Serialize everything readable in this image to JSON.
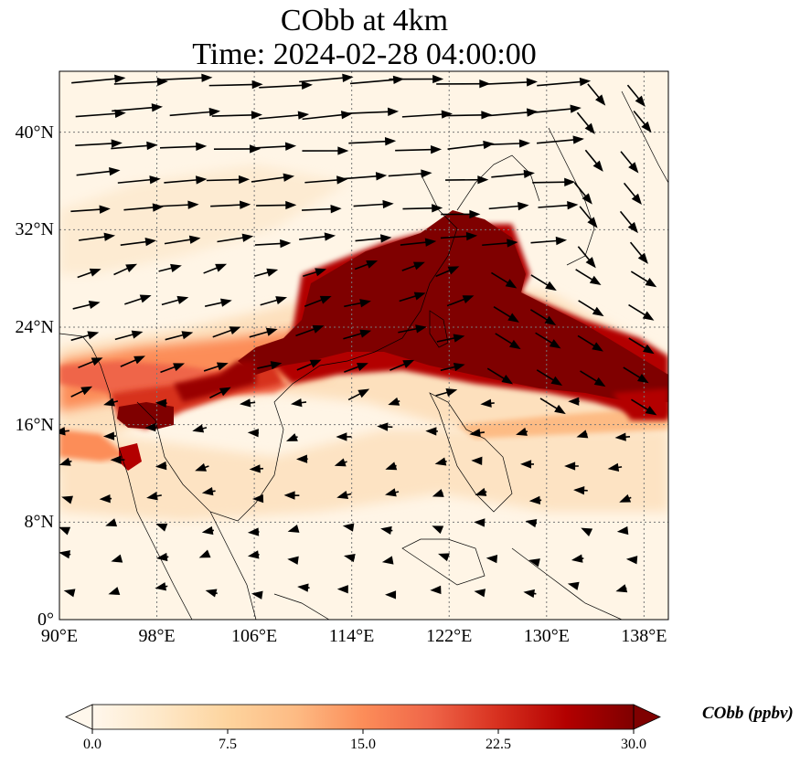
{
  "title": {
    "line1": "CObb at 4km",
    "line2": "Time: 2024-02-28 04:00:00"
  },
  "map": {
    "lon_range": [
      90,
      140
    ],
    "lat_range": [
      0,
      45
    ],
    "lat_ticks": [
      {
        "value": 0,
        "label": "0°"
      },
      {
        "value": 8,
        "label": "8°N"
      },
      {
        "value": 16,
        "label": "16°N"
      },
      {
        "value": 24,
        "label": "24°N"
      },
      {
        "value": 32,
        "label": "32°N"
      },
      {
        "value": 40,
        "label": "40°N"
      }
    ],
    "lon_ticks": [
      {
        "value": 90,
        "label": "90°E"
      },
      {
        "value": 98,
        "label": "98°E"
      },
      {
        "value": 106,
        "label": "106°E"
      },
      {
        "value": 114,
        "label": "114°E"
      },
      {
        "value": 122,
        "label": "122°E"
      },
      {
        "value": 130,
        "label": "130°E"
      },
      {
        "value": 138,
        "label": "138°E"
      }
    ],
    "gridlines": true,
    "wind_vectors": true
  },
  "colorbar": {
    "label": "CObb (ppbv)",
    "ticks": [
      "0.0",
      "7.5",
      "15.0",
      "22.5",
      "30.0"
    ],
    "range": [
      0,
      30
    ],
    "colormap": "OrRd",
    "colors": [
      "#fff7ec",
      "#fee8c8",
      "#fdd49e",
      "#fdbb84",
      "#fc8d59",
      "#ef6548",
      "#d7301f",
      "#b30000",
      "#7f0000"
    ],
    "extend": "both"
  }
}
